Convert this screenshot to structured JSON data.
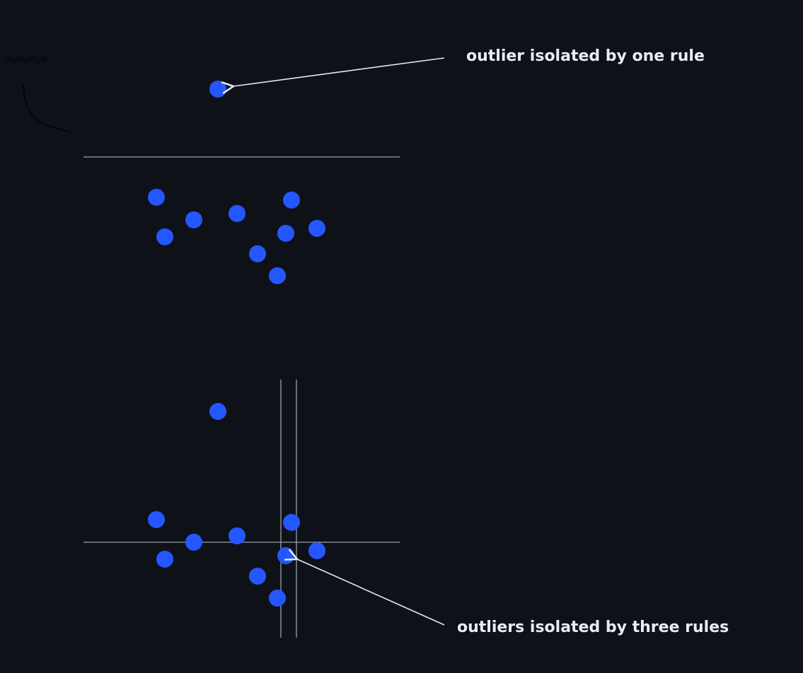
{
  "annotations": {
    "top_label": "outlier isolated by one rule",
    "bottom_label": "outliers isolated by three rules",
    "scribble_text": "dfgdfgdfgdf"
  },
  "colors": {
    "background": "#0f1118",
    "point": "#2457ff",
    "rule_line": "#9aa0aa",
    "arrow": "#e6e8ee",
    "annotation_text": "#e9ecf2",
    "scribble": "#05060a"
  },
  "panels": [
    {
      "name": "one-rule-panel",
      "rules": [
        "horizontal"
      ],
      "outlier_count": 1
    },
    {
      "name": "three-rules-panel",
      "rules": [
        "horizontal",
        "vertical",
        "vertical"
      ],
      "outlier_count": 1
    }
  ]
}
